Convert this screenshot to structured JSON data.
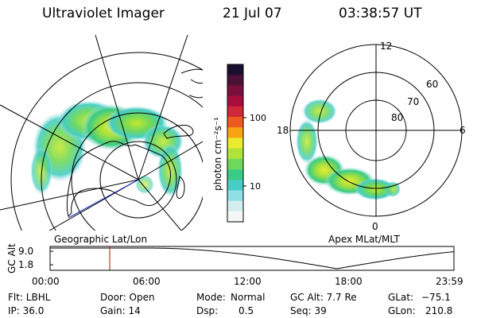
{
  "header": {
    "title": "Ultraviolet Imager",
    "date": "21 Jul 07",
    "time": "03:38:57 UT"
  },
  "left_map": {
    "caption": "Geographic Lat/Lon"
  },
  "right_map": {
    "caption": "Apex MLat/MLT",
    "mlt_labels": {
      "top": "12",
      "left": "18",
      "right": "6",
      "bottom": "0"
    },
    "lat_labels": [
      "60",
      "70",
      "80"
    ]
  },
  "colorbar": {
    "unit_label": "photon cm⁻²s⁻¹",
    "ticks": [
      "100",
      "10"
    ],
    "colors": [
      "#1a0f30",
      "#4b1238",
      "#7a0f3c",
      "#a80d3d",
      "#d0283a",
      "#ee5a1f",
      "#f9a313",
      "#eaeb2c",
      "#b0e33a",
      "#6fd85a",
      "#3acb86",
      "#45cdc6",
      "#8fdfe4",
      "#d4eef0",
      "#f5f7f7"
    ]
  },
  "timeline": {
    "y_label": "GC Alt",
    "y_ticks": [
      "9.0",
      "1.8"
    ],
    "x_ticks": [
      "00:00",
      "06:00",
      "12:00",
      "18:00",
      "23:59"
    ],
    "marker_time": "03:38",
    "line_color": "#000000",
    "marker_color": "#cc0000"
  },
  "info": {
    "row1": {
      "flt": "Flt: LBHL",
      "door": "Door: Open",
      "mode_label": "Mode:",
      "mode_value": "Normal",
      "gc_alt": "GC Alt: 7.7 Re",
      "glat_label": "GLat:",
      "glat_value": "−75.1"
    },
    "row2": {
      "ip": "IP: 36.0",
      "gain": "Gain: 14",
      "dsp_label": "Dsp:",
      "dsp_value": "0.5",
      "seq": "Seq: 39",
      "glon_label": "GLon:",
      "glon_value": "210.8"
    }
  }
}
